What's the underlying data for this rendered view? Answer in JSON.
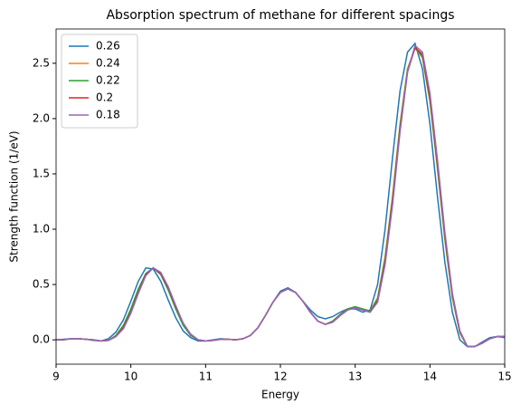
{
  "chart_data": {
    "type": "line",
    "title": "Absorption spectrum of methane for different spacings",
    "x_label": "Energy",
    "y_label": "Strength function (1/eV)",
    "legend": "upper left",
    "xlim": [
      9,
      15
    ],
    "ylim": [
      -0.22,
      2.81
    ],
    "xticks": [
      9,
      10,
      11,
      12,
      13,
      14,
      15
    ],
    "yticks": [
      {
        "value": 0,
        "label": "0.0"
      },
      0.5,
      {
        "value": 1,
        "label": "1.0"
      },
      1.5,
      {
        "value": 2,
        "label": "2.0"
      },
      2.5
    ],
    "x": [
      9.0,
      9.1,
      9.2,
      9.3,
      9.4,
      9.5,
      9.6,
      9.7,
      9.8,
      9.9,
      10.0,
      10.1,
      10.2,
      10.3,
      10.4,
      10.5,
      10.6,
      10.7,
      10.8,
      10.9,
      11.0,
      11.1,
      11.2,
      11.3,
      11.4,
      11.5,
      11.6,
      11.7,
      11.8,
      11.9,
      12.0,
      12.1,
      12.2,
      12.3,
      12.4,
      12.5,
      12.6,
      12.7,
      12.8,
      12.9,
      13.0,
      13.1,
      13.2,
      13.3,
      13.4,
      13.5,
      13.6,
      13.7,
      13.8,
      13.9,
      14.0,
      14.1,
      14.2,
      14.3,
      14.4,
      14.5,
      14.6,
      14.7,
      14.8,
      14.9,
      15.0
    ],
    "series": [
      {
        "name": "0.26",
        "color": "#1f77b4",
        "values": [
          0.0,
          0.005,
          0.01,
          0.01,
          0.005,
          -0.005,
          -0.01,
          0.01,
          0.07,
          0.18,
          0.35,
          0.53,
          0.65,
          0.64,
          0.53,
          0.36,
          0.2,
          0.08,
          0.02,
          -0.01,
          -0.01,
          0.0,
          0.01,
          0.005,
          0.0,
          0.01,
          0.04,
          0.11,
          0.22,
          0.34,
          0.44,
          0.47,
          0.43,
          0.35,
          0.27,
          0.21,
          0.19,
          0.21,
          0.25,
          0.28,
          0.28,
          0.25,
          0.27,
          0.5,
          1.0,
          1.65,
          2.25,
          2.6,
          2.68,
          2.45,
          1.95,
          1.3,
          0.7,
          0.25,
          0.0,
          -0.06,
          -0.06,
          -0.02,
          0.02,
          0.03,
          0.02
        ]
      },
      {
        "name": "0.24",
        "color": "#ff7f0e",
        "values": [
          0.0,
          0.0,
          0.01,
          0.01,
          0.005,
          0.0,
          -0.01,
          -0.005,
          0.03,
          0.11,
          0.26,
          0.44,
          0.59,
          0.65,
          0.6,
          0.46,
          0.29,
          0.14,
          0.05,
          0.0,
          -0.01,
          -0.005,
          0.005,
          0.005,
          0.0,
          0.01,
          0.04,
          0.11,
          0.22,
          0.34,
          0.43,
          0.46,
          0.43,
          0.35,
          0.25,
          0.17,
          0.14,
          0.17,
          0.23,
          0.28,
          0.29,
          0.27,
          0.26,
          0.38,
          0.75,
          1.3,
          1.95,
          2.45,
          2.64,
          2.55,
          2.15,
          1.55,
          0.9,
          0.38,
          0.06,
          -0.06,
          -0.06,
          -0.03,
          0.01,
          0.03,
          0.03
        ]
      },
      {
        "name": "0.22",
        "color": "#2ca02c",
        "values": [
          0.0,
          0.0,
          0.01,
          0.01,
          0.005,
          0.0,
          -0.01,
          -0.005,
          0.04,
          0.13,
          0.28,
          0.46,
          0.6,
          0.65,
          0.59,
          0.45,
          0.28,
          0.13,
          0.04,
          0.0,
          -0.01,
          -0.005,
          0.005,
          0.005,
          0.0,
          0.01,
          0.04,
          0.11,
          0.22,
          0.34,
          0.43,
          0.46,
          0.43,
          0.35,
          0.25,
          0.17,
          0.14,
          0.17,
          0.23,
          0.28,
          0.3,
          0.28,
          0.26,
          0.37,
          0.73,
          1.28,
          1.93,
          2.44,
          2.64,
          2.56,
          2.17,
          1.57,
          0.92,
          0.39,
          0.07,
          -0.06,
          -0.06,
          -0.03,
          0.01,
          0.03,
          0.03
        ]
      },
      {
        "name": "0.2",
        "color": "#d62728",
        "values": [
          0.0,
          0.0,
          0.01,
          0.01,
          0.005,
          0.0,
          -0.01,
          -0.005,
          0.03,
          0.11,
          0.25,
          0.43,
          0.59,
          0.65,
          0.6,
          0.47,
          0.3,
          0.15,
          0.05,
          0.0,
          -0.01,
          -0.005,
          0.005,
          0.005,
          0.0,
          0.01,
          0.04,
          0.11,
          0.22,
          0.34,
          0.43,
          0.46,
          0.43,
          0.35,
          0.25,
          0.17,
          0.14,
          0.16,
          0.22,
          0.27,
          0.29,
          0.27,
          0.25,
          0.35,
          0.7,
          1.25,
          1.9,
          2.42,
          2.64,
          2.58,
          2.2,
          1.6,
          0.95,
          0.41,
          0.08,
          -0.06,
          -0.06,
          -0.03,
          0.01,
          0.03,
          0.03
        ]
      },
      {
        "name": "0.18",
        "color": "#9467bd",
        "values": [
          0.0,
          0.0,
          0.01,
          0.01,
          0.005,
          0.0,
          -0.01,
          -0.005,
          0.03,
          0.1,
          0.24,
          0.42,
          0.58,
          0.65,
          0.61,
          0.48,
          0.31,
          0.15,
          0.05,
          0.0,
          -0.01,
          -0.005,
          0.005,
          0.005,
          0.0,
          0.01,
          0.04,
          0.11,
          0.22,
          0.34,
          0.43,
          0.46,
          0.43,
          0.35,
          0.25,
          0.17,
          0.14,
          0.16,
          0.22,
          0.27,
          0.29,
          0.27,
          0.25,
          0.34,
          0.68,
          1.22,
          1.88,
          2.42,
          2.66,
          2.6,
          2.23,
          1.63,
          0.97,
          0.42,
          0.08,
          -0.06,
          -0.06,
          -0.03,
          0.01,
          0.03,
          0.03
        ]
      }
    ]
  }
}
